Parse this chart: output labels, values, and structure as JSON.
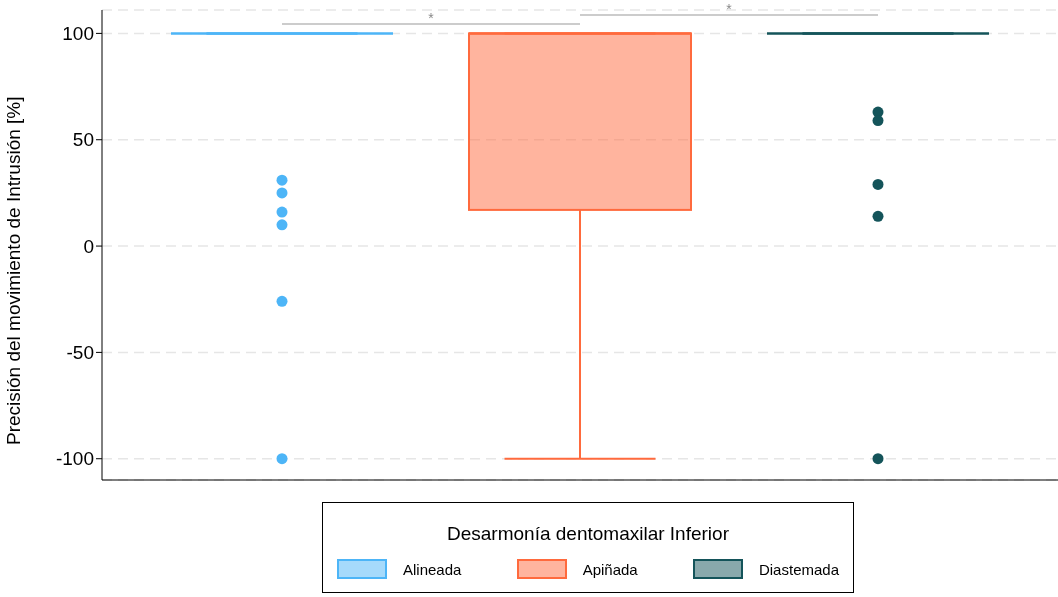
{
  "chart_data": {
    "type": "box",
    "ylabel": "Precisión del movimiento de Intrusión [%]",
    "legend_title": "Desarmonía dentomaxilar Inferior",
    "categories": [
      null
    ],
    "series": [
      {
        "name": "Alineada",
        "color": "#4db5f7",
        "boxes": [
          {
            "low": 100,
            "q1": 100,
            "median": 100,
            "q3": 100,
            "high": 100,
            "outliers": [
              31,
              25,
              16,
              10,
              -26,
              -100
            ]
          }
        ]
      },
      {
        "name": "Apiñada",
        "color": "#ff6a3d",
        "boxes": [
          {
            "low": -100,
            "q1": 17,
            "median": 100,
            "q3": 100,
            "high": 100
          }
        ]
      },
      {
        "name": "Diastemada",
        "color": "#14545a",
        "boxes": [
          {
            "low": 100,
            "q1": 100,
            "median": 100,
            "q3": 100,
            "high": 100,
            "outliers": [
              63,
              59,
              29,
              14,
              -100
            ]
          }
        ]
      }
    ],
    "ylim": [
      -110,
      111
    ],
    "yticks": [
      -100,
      -50,
      0,
      50,
      100
    ],
    "grid": "y",
    "legend": "bottom",
    "tick_labels": "y",
    "annotations": [
      "*",
      "*"
    ]
  }
}
